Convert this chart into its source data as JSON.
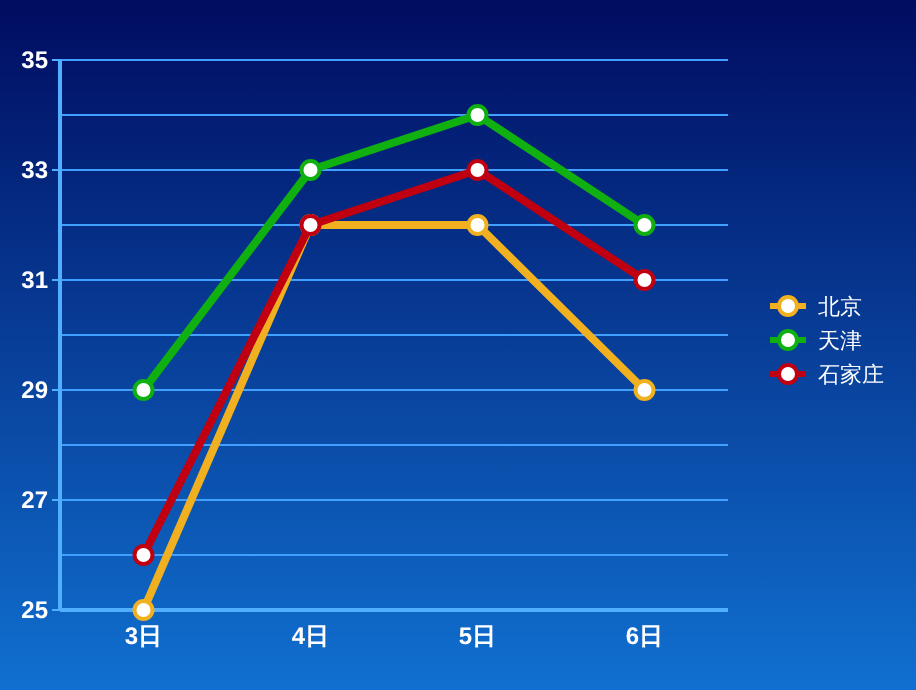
{
  "chart_data": {
    "type": "line",
    "categories": [
      "3日",
      "4日",
      "5日",
      "6日"
    ],
    "series": [
      {
        "name": "北京",
        "color": "#f0b020",
        "values": [
          25,
          32,
          32,
          29
        ]
      },
      {
        "name": "天津",
        "color": "#10b010",
        "values": [
          29,
          33,
          34,
          32
        ]
      },
      {
        "name": "石家庄",
        "color": "#c00010",
        "values": [
          26,
          32,
          33,
          31
        ]
      }
    ],
    "ylim": [
      25,
      35
    ],
    "yticks": [
      25,
      27,
      29,
      31,
      33,
      35
    ],
    "grid": "y",
    "legend": "right",
    "marker": "circle"
  }
}
